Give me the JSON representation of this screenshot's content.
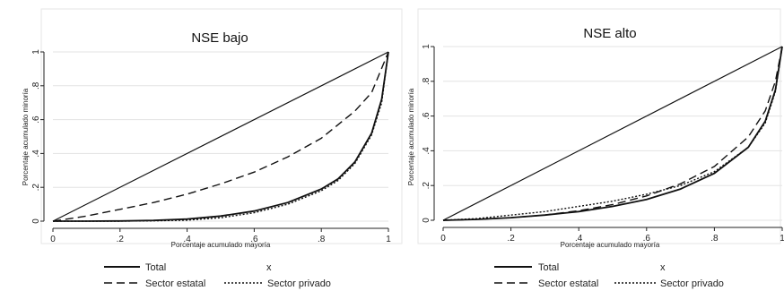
{
  "chart_data": [
    {
      "type": "line",
      "title": "NSE bajo",
      "xlabel": "Porcentaje acumulado mayoría",
      "ylabel": "Porcentaje acumulado minoría",
      "xlim": [
        0,
        1
      ],
      "ylim": [
        0,
        1
      ],
      "xticks": [
        "0",
        ".2",
        ".4",
        ".6",
        ".8",
        "1"
      ],
      "yticks": [
        "0",
        ".2",
        ".4",
        ".6",
        ".8",
        "1"
      ],
      "grid": true,
      "legend_position": "bottom",
      "series": [
        {
          "name": "Total",
          "style": "solid",
          "color": "#111111",
          "points": [
            [
              0,
              0
            ],
            [
              0.1,
              0.0
            ],
            [
              0.2,
              0.001
            ],
            [
              0.3,
              0.004
            ],
            [
              0.4,
              0.012
            ],
            [
              0.5,
              0.03
            ],
            [
              0.6,
              0.06
            ],
            [
              0.7,
              0.11
            ],
            [
              0.8,
              0.19
            ],
            [
              0.85,
              0.25
            ],
            [
              0.9,
              0.35
            ],
            [
              0.95,
              0.52
            ],
            [
              0.98,
              0.72
            ],
            [
              1,
              1
            ]
          ]
        },
        {
          "name": "x",
          "style": "solid",
          "color": "#111111",
          "points": [
            [
              0,
              0
            ],
            [
              1,
              1
            ]
          ]
        },
        {
          "name": "Sector estatal",
          "style": "dashed",
          "color": "#111111",
          "points": [
            [
              0,
              0
            ],
            [
              0.1,
              0.03
            ],
            [
              0.2,
              0.07
            ],
            [
              0.3,
              0.11
            ],
            [
              0.4,
              0.16
            ],
            [
              0.5,
              0.22
            ],
            [
              0.6,
              0.29
            ],
            [
              0.7,
              0.38
            ],
            [
              0.8,
              0.49
            ],
            [
              0.9,
              0.65
            ],
            [
              0.95,
              0.76
            ],
            [
              1,
              1
            ]
          ]
        },
        {
          "name": "Sector privado",
          "style": "dotted",
          "color": "#111111",
          "points": [
            [
              0,
              0
            ],
            [
              0.1,
              0.0
            ],
            [
              0.2,
              0.0
            ],
            [
              0.3,
              0.002
            ],
            [
              0.4,
              0.006
            ],
            [
              0.5,
              0.02
            ],
            [
              0.6,
              0.05
            ],
            [
              0.7,
              0.1
            ],
            [
              0.8,
              0.18
            ],
            [
              0.85,
              0.24
            ],
            [
              0.9,
              0.34
            ],
            [
              0.95,
              0.51
            ],
            [
              0.98,
              0.7
            ],
            [
              1,
              1
            ]
          ]
        }
      ]
    },
    {
      "type": "line",
      "title": "NSE alto",
      "xlabel": "Porcentaje acumulado mayoría",
      "ylabel": "Porcentaje acumulado minoría",
      "xlim": [
        0,
        1
      ],
      "ylim": [
        0,
        1
      ],
      "xticks": [
        "0",
        ".2",
        ".4",
        ".6",
        ".8",
        "1"
      ],
      "yticks": [
        "0",
        ".2",
        ".4",
        ".6",
        ".8",
        "1"
      ],
      "grid": true,
      "legend_position": "bottom",
      "series": [
        {
          "name": "Total",
          "style": "solid",
          "color": "#111111",
          "points": [
            [
              0,
              0
            ],
            [
              0.1,
              0.005
            ],
            [
              0.2,
              0.015
            ],
            [
              0.3,
              0.03
            ],
            [
              0.4,
              0.05
            ],
            [
              0.5,
              0.08
            ],
            [
              0.6,
              0.12
            ],
            [
              0.7,
              0.18
            ],
            [
              0.8,
              0.27
            ],
            [
              0.9,
              0.42
            ],
            [
              0.95,
              0.57
            ],
            [
              0.98,
              0.75
            ],
            [
              1,
              1
            ]
          ]
        },
        {
          "name": "x",
          "style": "solid",
          "color": "#111111",
          "points": [
            [
              0,
              0
            ],
            [
              1,
              1
            ]
          ]
        },
        {
          "name": "Sector estatal",
          "style": "dashed",
          "color": "#111111",
          "points": [
            [
              0,
              0
            ],
            [
              0.1,
              0.005
            ],
            [
              0.2,
              0.015
            ],
            [
              0.3,
              0.03
            ],
            [
              0.4,
              0.055
            ],
            [
              0.5,
              0.09
            ],
            [
              0.6,
              0.14
            ],
            [
              0.7,
              0.21
            ],
            [
              0.8,
              0.31
            ],
            [
              0.9,
              0.48
            ],
            [
              0.95,
              0.63
            ],
            [
              0.98,
              0.8
            ],
            [
              1,
              1
            ]
          ]
        },
        {
          "name": "Sector privado",
          "style": "dotted",
          "color": "#111111",
          "points": [
            [
              0,
              0
            ],
            [
              0.1,
              0.01
            ],
            [
              0.2,
              0.03
            ],
            [
              0.3,
              0.05
            ],
            [
              0.4,
              0.08
            ],
            [
              0.5,
              0.11
            ],
            [
              0.6,
              0.15
            ],
            [
              0.7,
              0.2
            ],
            [
              0.8,
              0.28
            ],
            [
              0.9,
              0.42
            ],
            [
              0.95,
              0.56
            ],
            [
              0.98,
              0.74
            ],
            [
              1,
              1
            ]
          ]
        }
      ]
    }
  ],
  "legend_labels": {
    "total": "Total",
    "x": "x",
    "estatal": "Sector estatal",
    "privado": "Sector privado"
  }
}
